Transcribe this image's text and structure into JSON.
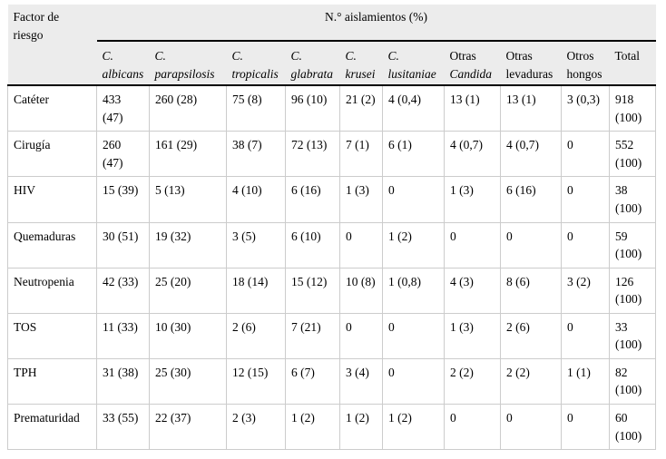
{
  "table": {
    "corner_header": "Factor de riesgo",
    "group_header": "N.° aislamientos (%)",
    "columns": [
      {
        "parts": [
          {
            "text": "C.",
            "italic": true
          },
          {
            "text": "albicans",
            "italic": true
          }
        ]
      },
      {
        "parts": [
          {
            "text": "C.",
            "italic": true
          },
          {
            "text": "parapsilosis",
            "italic": true
          }
        ]
      },
      {
        "parts": [
          {
            "text": "C.",
            "italic": true
          },
          {
            "text": "tropicalis",
            "italic": true
          }
        ]
      },
      {
        "parts": [
          {
            "text": "C.",
            "italic": true
          },
          {
            "text": "glabrata",
            "italic": true
          }
        ]
      },
      {
        "parts": [
          {
            "text": "C.",
            "italic": true
          },
          {
            "text": "krusei",
            "italic": true
          }
        ]
      },
      {
        "parts": [
          {
            "text": "C.",
            "italic": true
          },
          {
            "text": "lusitaniae",
            "italic": true
          }
        ]
      },
      {
        "parts": [
          {
            "text": "Otras",
            "italic": false
          },
          {
            "text": "Candida",
            "italic": true
          }
        ]
      },
      {
        "parts": [
          {
            "text": "Otras",
            "italic": false
          },
          {
            "text": "levaduras",
            "italic": false
          }
        ]
      },
      {
        "parts": [
          {
            "text": "Otros",
            "italic": false
          },
          {
            "text": "hongos",
            "italic": false
          }
        ]
      },
      {
        "parts": [
          {
            "text": "Total",
            "italic": false
          }
        ]
      }
    ],
    "rows": [
      {
        "factor": "Catéter",
        "values": [
          "433 (47)",
          "260 (28)",
          "75 (8)",
          "96 (10)",
          "21 (2)",
          "4 (0,4)",
          "13 (1)",
          "13 (1)",
          "3 (0,3)",
          "918 (100)"
        ]
      },
      {
        "factor": "Cirugía",
        "values": [
          "260 (47)",
          "161 (29)",
          "38 (7)",
          "72 (13)",
          "7 (1)",
          "6 (1)",
          "4 (0,7)",
          "4 (0,7)",
          "0",
          "552 (100)"
        ]
      },
      {
        "factor": "HIV",
        "values": [
          "15 (39)",
          "5 (13)",
          "4 (10)",
          "6 (16)",
          "1 (3)",
          "0",
          "1 (3)",
          "6 (16)",
          "0",
          "38 (100)"
        ]
      },
      {
        "factor": "Quemaduras",
        "values": [
          "30 (51)",
          "19 (32)",
          "3 (5)",
          "6 (10)",
          "0",
          "1 (2)",
          "0",
          "0",
          "0",
          "59 (100)"
        ]
      },
      {
        "factor": "Neutropenia",
        "values": [
          "42 (33)",
          "25 (20)",
          "18 (14)",
          "15 (12)",
          "10 (8)",
          "1 (0,8)",
          "4 (3)",
          "8 (6)",
          "3 (2)",
          "126 (100)"
        ]
      },
      {
        "factor": "TOS",
        "values": [
          "11 (33)",
          "10 (30)",
          "2 (6)",
          "7 (21)",
          "0",
          "0",
          "1 (3)",
          "2 (6)",
          "0",
          "33 (100)"
        ]
      },
      {
        "factor": "TPH",
        "values": [
          "31 (38)",
          "25 (30)",
          "12 (15)",
          "6 (7)",
          "3 (4)",
          "0",
          "2 (2)",
          "2 (2)",
          "1 (1)",
          "82 (100)"
        ]
      },
      {
        "factor": "Prematuridad",
        "values": [
          "33 (55)",
          "22 (37)",
          "2 (3)",
          "1 (2)",
          "1 (2)",
          "1 (2)",
          "0",
          "0",
          "0",
          "60 (100)"
        ]
      }
    ]
  },
  "colors": {
    "header_background": "#ececec",
    "heavy_rule": "#000000",
    "grid_line": "#cccccc",
    "text": "#000000"
  }
}
